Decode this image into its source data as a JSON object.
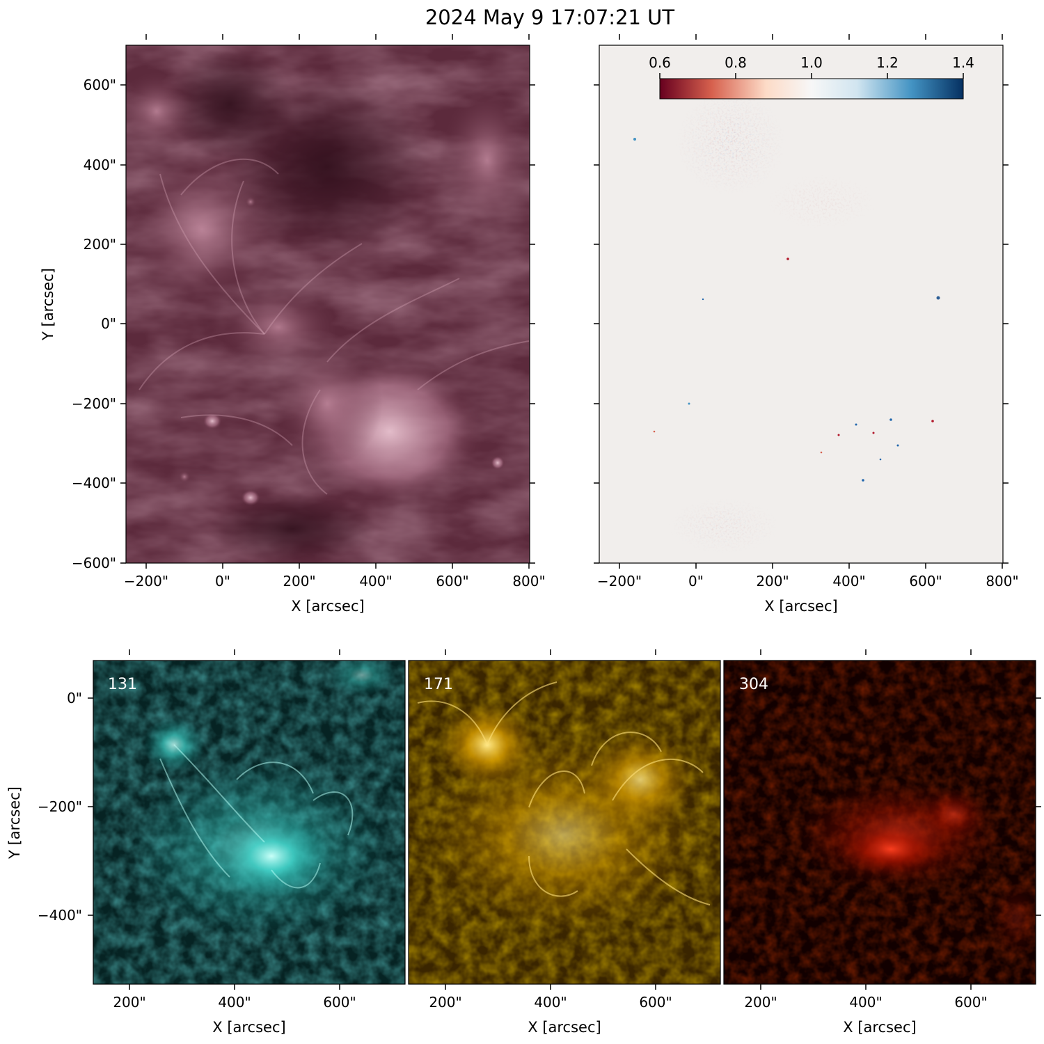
{
  "figure": {
    "title": "2024 May 9 17:07:21 UT"
  },
  "top_left": {
    "xlabel": "X [arcsec]",
    "ylabel": "Y [arcsec]",
    "x_ticks": [
      "−200\"",
      "0\"",
      "200\"",
      "400\"",
      "600\"",
      "800\""
    ],
    "y_ticks": [
      "600\"",
      "400\"",
      "200\"",
      "0\"",
      "−200\"",
      "−400\"",
      "−600\""
    ],
    "colors": {
      "base": "#5c2a3c",
      "bright": "#e3b8c6",
      "dark": "#2c0c18"
    }
  },
  "top_right": {
    "xlabel": "X [arcsec]",
    "x_ticks": [
      "−200\"",
      "0\"",
      "200\"",
      "400\"",
      "600\"",
      "800\""
    ],
    "colorbar": {
      "ticks": [
        "0.6",
        "0.8",
        "1.0",
        "1.2",
        "1.4"
      ],
      "colors": [
        "#67001f",
        "#d6604d",
        "#fddbc7",
        "#f7f7f7",
        "#d1e5f0",
        "#4393c3",
        "#053061"
      ]
    },
    "colors": {
      "background": "#f1eeec"
    }
  },
  "bottom": {
    "ylabel": "Y [arcsec]",
    "y_ticks": [
      "0\"",
      "−200\"",
      "−400\""
    ],
    "panels": [
      {
        "label": "131",
        "xlabel": "X [arcsec]",
        "x_ticks": [
          "200\"",
          "400\"",
          "600\""
        ],
        "colors": {
          "dark": "#062323",
          "mid": "#0f7a78",
          "bright": "#9ffff6"
        }
      },
      {
        "label": "171",
        "xlabel": "X [arcsec]",
        "x_ticks": [
          "200\"",
          "400\"",
          "600\""
        ],
        "colors": {
          "dark": "#3a2500",
          "mid": "#b98300",
          "bright": "#ffdf6a"
        }
      },
      {
        "label": "304",
        "xlabel": "X [arcsec]",
        "x_ticks": [
          "200\"",
          "400\"",
          "600\""
        ],
        "colors": {
          "dark": "#120000",
          "mid": "#5a0600",
          "bright": "#ff3a1a"
        }
      }
    ]
  }
}
